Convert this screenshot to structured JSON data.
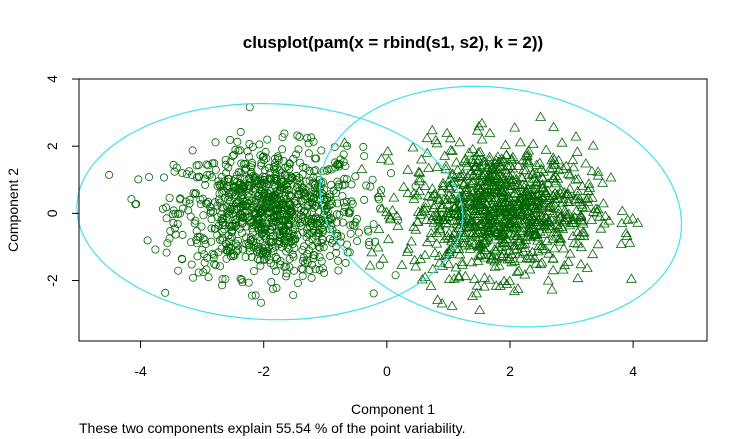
{
  "chart_data": {
    "type": "scatter",
    "title": "clusplot(pam(x = rbind(s1, s2), k = 2))",
    "xlabel": "Component 1",
    "ylabel": "Component 2",
    "caption": "These two components explain 55.54 % of the point variability.",
    "xlim": [
      -5.0,
      5.2
    ],
    "ylim": [
      -3.8,
      4.0
    ],
    "xticks": [
      -4,
      -2,
      0,
      2,
      4
    ],
    "yticks": [
      -2,
      0,
      2,
      4
    ],
    "point_color": "#006400",
    "ellipse_color": "#40E0F0",
    "clusters": [
      {
        "marker": "circle",
        "count": 1000,
        "center": [
          -1.9,
          0.05
        ],
        "spread": [
          0.75,
          0.95
        ],
        "ellipse": {
          "center": [
            -1.9,
            0.05
          ],
          "semi_axes": [
            3.1,
            3.25
          ],
          "angle_deg": 28
        }
      },
      {
        "marker": "triangle",
        "count": 1000,
        "center": [
          1.85,
          0.1
        ],
        "spread": [
          0.75,
          0.95
        ],
        "ellipse": {
          "center": [
            1.85,
            0.2
          ],
          "semi_axes": [
            2.85,
            3.65
          ],
          "angle_deg": 18
        }
      }
    ]
  }
}
